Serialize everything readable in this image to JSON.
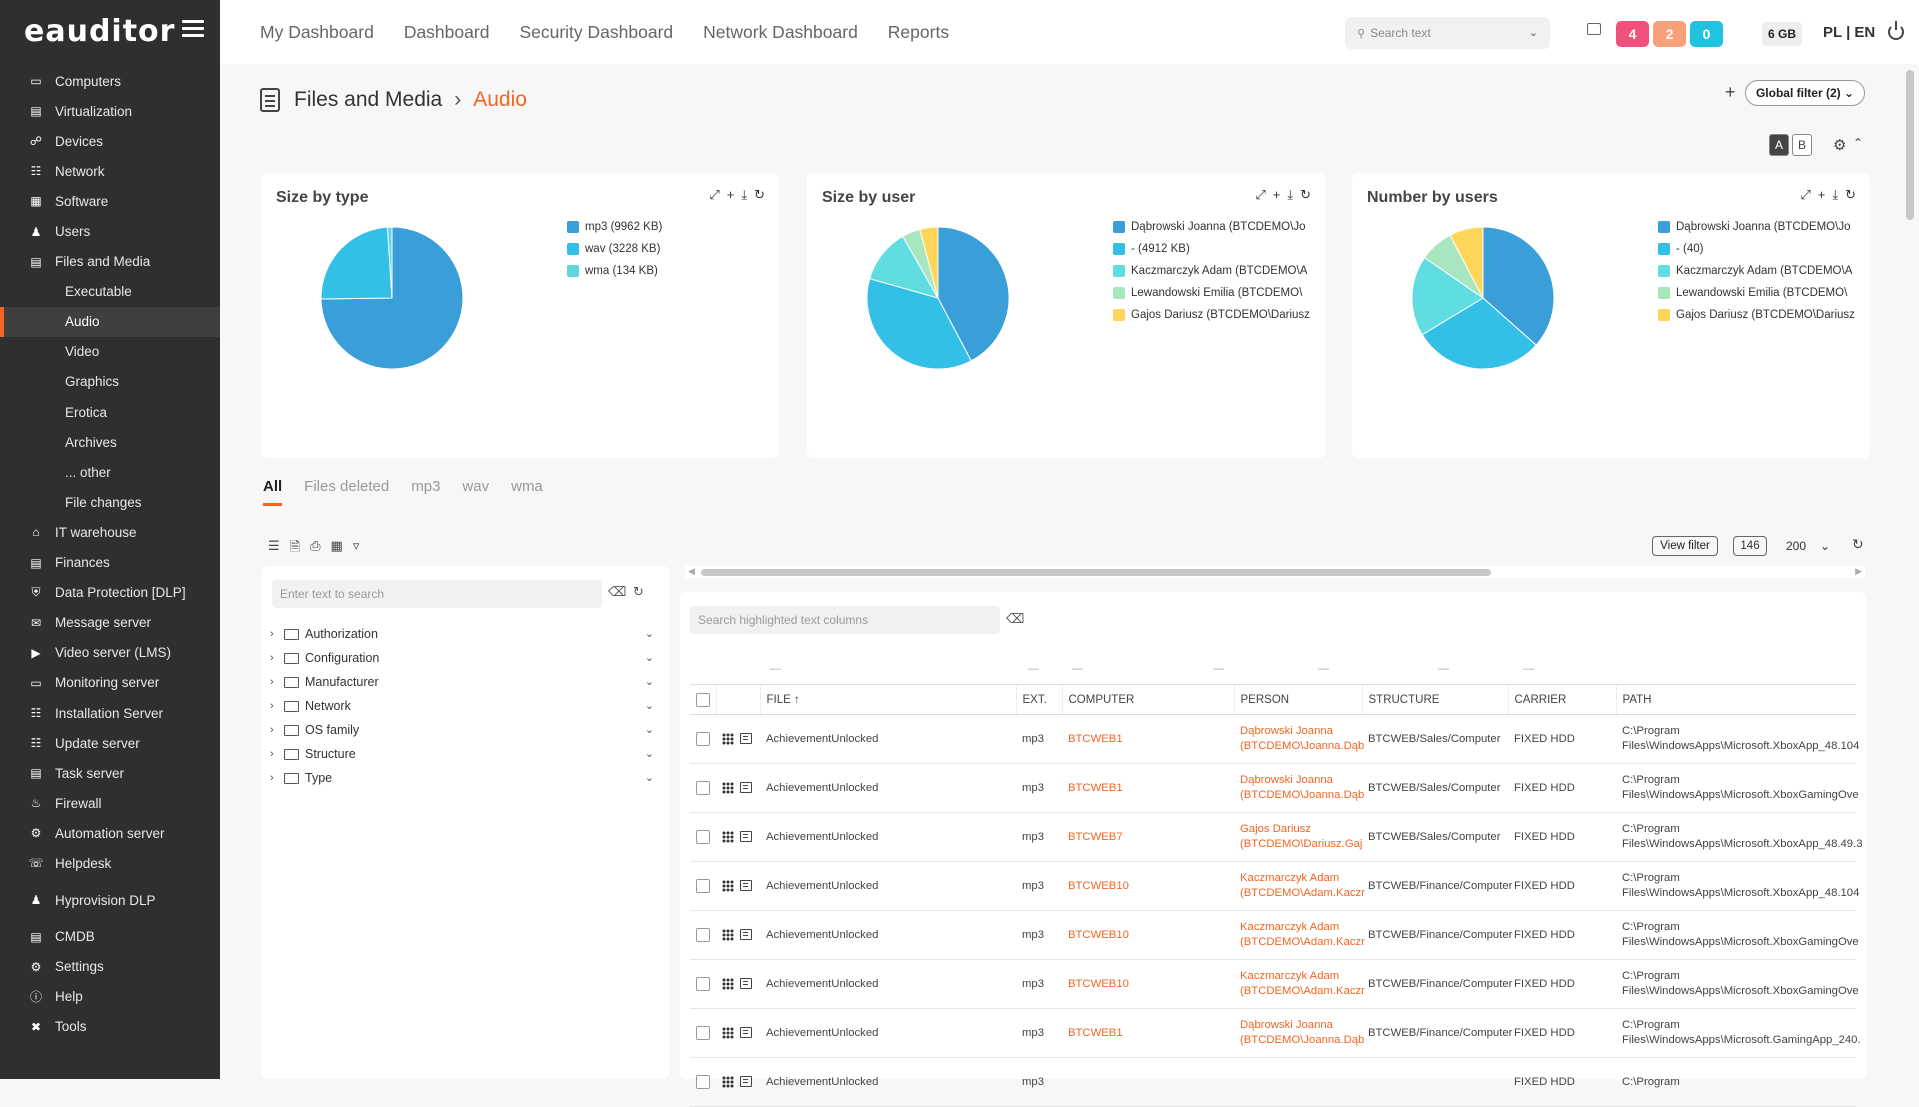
{
  "app": {
    "logo": "eauditor"
  },
  "sidebar": {
    "items": [
      {
        "label": "Computers",
        "icon": "computer-icon"
      },
      {
        "label": "Virtualization",
        "icon": "server-icon"
      },
      {
        "label": "Devices",
        "icon": "devices-icon"
      },
      {
        "label": "Network",
        "icon": "network-icon"
      },
      {
        "label": "Software",
        "icon": "software-icon"
      },
      {
        "label": "Users",
        "icon": "users-icon"
      },
      {
        "label": "Files and Media",
        "icon": "files-icon"
      },
      {
        "label": "Executable",
        "sub": true
      },
      {
        "label": "Audio",
        "sub": true,
        "active": true
      },
      {
        "label": "Video",
        "sub": true
      },
      {
        "label": "Graphics",
        "sub": true
      },
      {
        "label": "Erotica",
        "sub": true
      },
      {
        "label": "Archives",
        "sub": true
      },
      {
        "label": "... other",
        "sub": true
      },
      {
        "label": "File changes",
        "sub": true
      },
      {
        "label": "IT warehouse",
        "icon": "warehouse-icon"
      },
      {
        "label": "Finances",
        "icon": "finances-icon"
      },
      {
        "label": "Data Protection [DLP]",
        "icon": "shield-icon"
      },
      {
        "label": "Message server",
        "icon": "mail-icon"
      },
      {
        "label": "Video server (LMS)",
        "icon": "video-icon"
      },
      {
        "label": "Monitoring server",
        "icon": "monitor-icon"
      },
      {
        "label": "Installation Server",
        "icon": "network-icon"
      },
      {
        "label": "Update server",
        "icon": "network-icon"
      },
      {
        "label": "Task server",
        "icon": "task-icon"
      },
      {
        "label": "Firewall",
        "icon": "firewall-icon"
      },
      {
        "label": "Automation server",
        "icon": "automation-icon"
      },
      {
        "label": "Helpdesk",
        "icon": "helpdesk-icon"
      },
      {
        "label": "Hyprovision DLP",
        "icon": "users-icon",
        "gap": true
      },
      {
        "label": "CMDB",
        "icon": "database-icon",
        "gap": true
      },
      {
        "label": "Settings",
        "icon": "gear-icon"
      },
      {
        "label": "Help",
        "icon": "help-icon"
      },
      {
        "label": "Tools",
        "icon": "tools-icon"
      }
    ]
  },
  "topnav": [
    "My Dashboard",
    "Dashboard",
    "Security Dashboard",
    "Network Dashboard",
    "Reports"
  ],
  "search": {
    "placeholder": "Search text"
  },
  "badges": [
    {
      "value": "4",
      "color": "#f0507a"
    },
    {
      "value": "2",
      "color": "#f7a07a"
    },
    {
      "value": "0",
      "color": "#1fc3e0"
    }
  ],
  "memory": "6 GB",
  "lang": "PL | EN",
  "page": {
    "title": "Files and Media",
    "crumb": "Audio",
    "global_filter": "Global filter (2)",
    "ab": [
      "A",
      "B"
    ]
  },
  "cards": [
    {
      "title": "Size by type"
    },
    {
      "title": "Size by user"
    },
    {
      "title": "Number by users"
    }
  ],
  "chart_data": [
    {
      "type": "pie",
      "title": "Size by type",
      "categories": [
        "mp3 (9962 KB)",
        "wav (3228 KB)",
        "wma (134 KB)"
      ],
      "values": [
        9962,
        3228,
        134
      ],
      "colors": [
        "#3a9fd8",
        "#33c0e6",
        "#5fd6dc"
      ]
    },
    {
      "type": "pie",
      "title": "Size by user",
      "categories": [
        "Dąbrowski Joanna (BTCDEMO\\Jo",
        "- (4912 KB)",
        "Kaczmarczyk Adam (BTCDEMO\\A",
        "Lewandowski Emilia (BTCDEMO\\",
        "Gajos Dariusz (BTCDEMO\\Dariusz"
      ],
      "values": [
        41,
        36,
        12,
        4,
        4
      ],
      "colors": [
        "#3a9fd8",
        "#33c0e6",
        "#5fdde0",
        "#a8e6bf",
        "#ffd659"
      ]
    },
    {
      "type": "pie",
      "title": "Number by users",
      "categories": [
        "Dąbrowski Joanna (BTCDEMO\\Jo",
        "- (40)",
        "Kaczmarczyk Adam (BTCDEMO\\A",
        "Lewandowski Emilia (BTCDEMO\\",
        "Gajos Dariusz (BTCDEMO\\Dariusz"
      ],
      "values": [
        38,
        31,
        19,
        8,
        8
      ],
      "colors": [
        "#3a9fd8",
        "#33c0e6",
        "#5fdde0",
        "#a8e6bf",
        "#ffd659"
      ]
    }
  ],
  "tabs": [
    "All",
    "Files deleted",
    "mp3",
    "wav",
    "wma"
  ],
  "toolbar": {
    "view_filter": "View filter",
    "count": "146",
    "page_size": "200"
  },
  "filter_panel": {
    "search_placeholder": "Enter text to search",
    "tree": [
      "Authorization",
      "Configuration",
      "Manufacturer",
      "Network",
      "OS family",
      "Structure",
      "Type"
    ]
  },
  "table": {
    "search_placeholder": "Search highlighted text columns",
    "columns": [
      "FILE",
      "EXT.",
      "COMPUTER",
      "PERSON",
      "STRUCTURE",
      "CARRIER",
      "PATH"
    ],
    "rows": [
      {
        "file": "AchievementUnlocked",
        "ext": "mp3",
        "computer": "BTCWEB1",
        "person1": "Dąbrowski Joanna",
        "person2": "(BTCDEMO\\Joanna.Dąb",
        "structure": "BTCWEB/Sales/Computer",
        "carrier": "FIXED HDD",
        "path1": "C:\\Program",
        "path2": "Files\\WindowsApps\\Microsoft.XboxApp_48.104"
      },
      {
        "file": "AchievementUnlocked",
        "ext": "mp3",
        "computer": "BTCWEB1",
        "person1": "Dąbrowski Joanna",
        "person2": "(BTCDEMO\\Joanna.Dąb",
        "structure": "BTCWEB/Sales/Computer",
        "carrier": "FIXED HDD",
        "path1": "C:\\Program",
        "path2": "Files\\WindowsApps\\Microsoft.XboxGamingOve"
      },
      {
        "file": "AchievementUnlocked",
        "ext": "mp3",
        "computer": "BTCWEB7",
        "person1": "Gajos Dariusz",
        "person2": "(BTCDEMO\\Dariusz.Gaj",
        "structure": "BTCWEB/Sales/Computer",
        "carrier": "FIXED HDD",
        "path1": "C:\\Program",
        "path2": "Files\\WindowsApps\\Microsoft.XboxApp_48.49.3"
      },
      {
        "file": "AchievementUnlocked",
        "ext": "mp3",
        "computer": "BTCWEB10",
        "person1": "Kaczmarczyk Adam",
        "person2": "(BTCDEMO\\Adam.Kaczr",
        "structure": "BTCWEB/Finance/Computer",
        "carrier": "FIXED HDD",
        "path1": "C:\\Program",
        "path2": "Files\\WindowsApps\\Microsoft.XboxApp_48.104"
      },
      {
        "file": "AchievementUnlocked",
        "ext": "mp3",
        "computer": "BTCWEB10",
        "person1": "Kaczmarczyk Adam",
        "person2": "(BTCDEMO\\Adam.Kaczr",
        "structure": "BTCWEB/Finance/Computer",
        "carrier": "FIXED HDD",
        "path1": "C:\\Program",
        "path2": "Files\\WindowsApps\\Microsoft.XboxGamingOve"
      },
      {
        "file": "AchievementUnlocked",
        "ext": "mp3",
        "computer": "BTCWEB10",
        "person1": "Kaczmarczyk Adam",
        "person2": "(BTCDEMO\\Adam.Kaczr",
        "structure": "BTCWEB/Finance/Computer",
        "carrier": "FIXED HDD",
        "path1": "C:\\Program",
        "path2": "Files\\WindowsApps\\Microsoft.XboxGamingOve"
      },
      {
        "file": "AchievementUnlocked",
        "ext": "mp3",
        "computer": "BTCWEB1",
        "person1": "Dąbrowski Joanna",
        "person2": "(BTCDEMO\\Joanna.Dąb",
        "structure": "BTCWEB/Finance/Computer",
        "carrier": "FIXED HDD",
        "path1": "C:\\Program",
        "path2": "Files\\WindowsApps\\Microsoft.GamingApp_240."
      },
      {
        "file": "AchievementUnlocked",
        "ext": "mp3",
        "computer": "",
        "person1": "",
        "person2": "",
        "structure": "",
        "carrier": "FIXED HDD",
        "path1": "C:\\Program",
        "path2": ""
      }
    ]
  }
}
